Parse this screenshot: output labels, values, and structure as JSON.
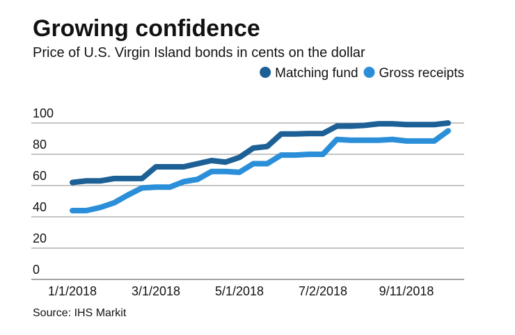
{
  "chart_data": {
    "type": "line",
    "title": "Growing confidence",
    "subtitle": "Price of U.S. Virgin Island bonds in cents on the dollar",
    "source": "Source: IHS Markit",
    "categories": [
      "1/1/2018",
      null,
      null,
      null,
      null,
      null,
      "3/1/2018",
      null,
      null,
      null,
      null,
      null,
      "5/1/2018",
      null,
      null,
      null,
      null,
      null,
      "7/2/2018",
      null,
      null,
      null,
      null,
      null,
      "9/11/2018",
      null,
      null,
      null
    ],
    "series": [
      {
        "name": "Matching fund",
        "color": "#1d6096",
        "values": [
          62,
          63,
          63,
          64.5,
          64.5,
          64.5,
          72,
          72,
          72,
          74,
          76,
          75,
          78,
          84,
          85,
          93,
          93,
          93.3,
          93.3,
          98,
          98,
          98.5,
          99.5,
          99.5,
          99,
          99,
          99,
          100
        ]
      },
      {
        "name": "Gross receipts",
        "color": "#2a8fd8",
        "values": [
          44,
          44,
          46,
          49,
          54,
          58.5,
          59,
          59,
          62.5,
          64,
          69,
          69,
          68.5,
          74,
          74,
          79.5,
          79.5,
          80,
          80,
          89.5,
          89,
          89,
          89,
          89.5,
          88.5,
          88.5,
          88.5,
          95
        ]
      }
    ],
    "ylim": [
      0,
      100
    ],
    "yticks": [
      0,
      20,
      40,
      60,
      80,
      100
    ],
    "grid": true,
    "legend": "top-right"
  }
}
